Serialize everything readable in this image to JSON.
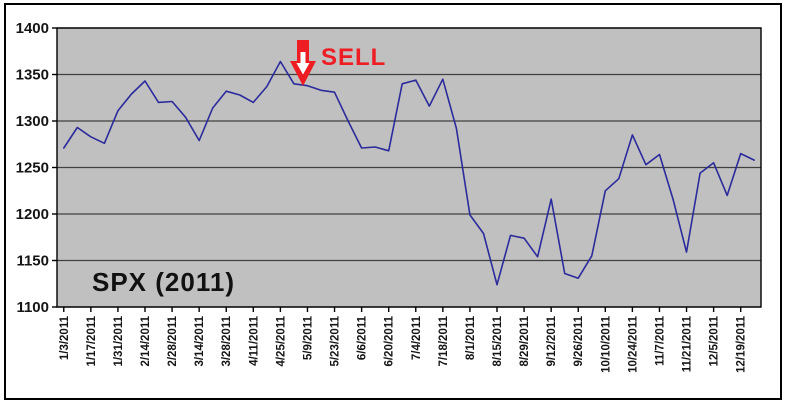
{
  "chart_data": {
    "type": "line",
    "title": "SPX (2011)",
    "series_label": "SPX (2011)",
    "legend": "none",
    "grid": true,
    "ylim": [
      1100,
      1400
    ],
    "y_ticks": [
      1400,
      1350,
      1300,
      1250,
      1200,
      1150,
      1100
    ],
    "x_tick_labels": [
      "1/3/2011",
      "1/17/2011",
      "1/31/2011",
      "2/14/2011",
      "2/28/2011",
      "3/14/2011",
      "3/28/2011",
      "4/11/2011",
      "4/25/2011",
      "5/9/2011",
      "5/23/2011",
      "6/6/2011",
      "6/20/2011",
      "7/4/2011",
      "7/18/2011",
      "8/1/2011",
      "8/15/2011",
      "8/29/2011",
      "9/12/2011",
      "9/26/2011",
      "10/10/2011",
      "10/24/2011",
      "11/7/2011",
      "11/21/2011",
      "12/5/2011",
      "12/19/2011"
    ],
    "label_every": 2,
    "values": [
      1271,
      1293,
      1283,
      1276,
      1311,
      1329,
      1343,
      1320,
      1321,
      1304,
      1279,
      1314,
      1332,
      1328,
      1320,
      1337,
      1364,
      1340,
      1338,
      1333,
      1331,
      1300,
      1271,
      1272,
      1268,
      1340,
      1344,
      1316,
      1345,
      1292,
      1199,
      1179,
      1124,
      1177,
      1174,
      1154,
      1216,
      1136,
      1131,
      1155,
      1225,
      1238,
      1285,
      1253,
      1264,
      1216,
      1159,
      1244,
      1255,
      1220,
      1265,
      1258
    ],
    "annotation": {
      "label": "SELL",
      "color": "#ee1c23",
      "arrow": "down",
      "at_label": "5/9/2011"
    },
    "colors": {
      "line": "#2b2b9c",
      "plot_bg": "#c0c0c0",
      "grid": "#404040",
      "axis": "#000000",
      "frame": "#000000",
      "text": "#151515"
    }
  }
}
